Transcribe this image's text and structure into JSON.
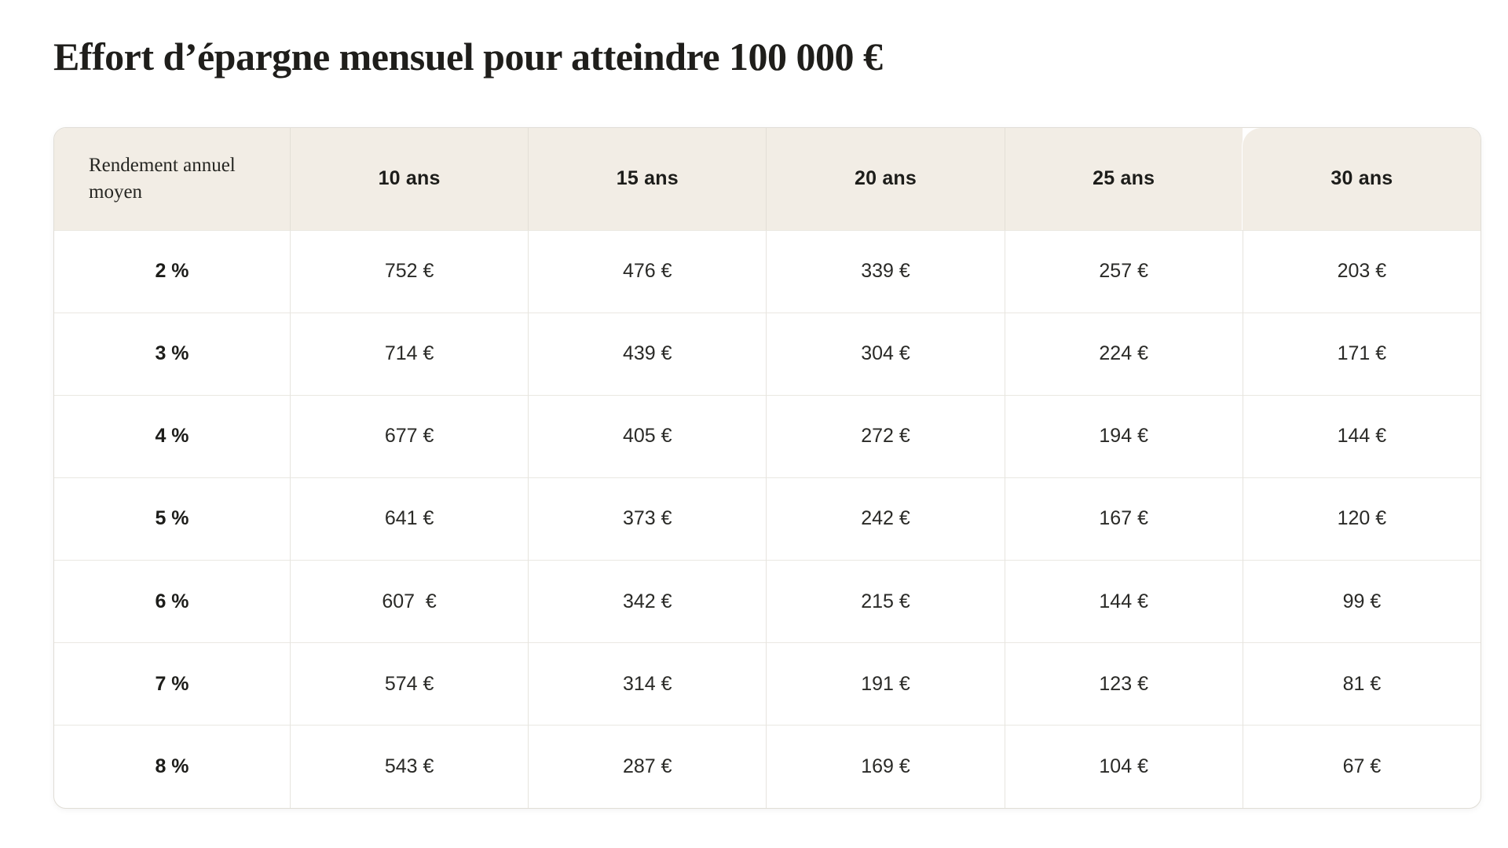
{
  "page": {
    "title": "Effort d’épargne mensuel pour atteindre 100 000 €"
  },
  "colors": {
    "background": "#ffffff",
    "header_background": "#f2ede5",
    "card_border": "#e0ddd6",
    "grid_line": "#e6e4de",
    "text": "#1e1e1c"
  },
  "chart_data": {
    "type": "table",
    "title": "Effort d’épargne mensuel pour atteindre 100 000 €",
    "columns": [
      "Rendement annuel moyen",
      "10 ans",
      "15 ans",
      "20 ans",
      "25 ans",
      "30 ans"
    ],
    "rows": [
      {
        "label": "2 %",
        "values": [
          "752 €",
          "476 €",
          "339 €",
          "257 €",
          "203 €"
        ]
      },
      {
        "label": "3 %",
        "values": [
          "714 €",
          "439 €",
          "304 €",
          "224 €",
          "171 €"
        ]
      },
      {
        "label": "4 %",
        "values": [
          "677 €",
          "405 €",
          "272 €",
          "194 €",
          "144 €"
        ]
      },
      {
        "label": "5 %",
        "values": [
          "641 €",
          "373 €",
          "242 €",
          "167 €",
          "120 €"
        ]
      },
      {
        "label": "6 %",
        "values": [
          "607  €",
          "342 €",
          "215 €",
          "144 €",
          "99 €"
        ]
      },
      {
        "label": "7 %",
        "values": [
          "574 €",
          "314 €",
          "191 €",
          "123 €",
          "81 €"
        ]
      },
      {
        "label": "8 %",
        "values": [
          "543 €",
          "287 €",
          "169 €",
          "104 €",
          "67 €"
        ]
      }
    ]
  }
}
